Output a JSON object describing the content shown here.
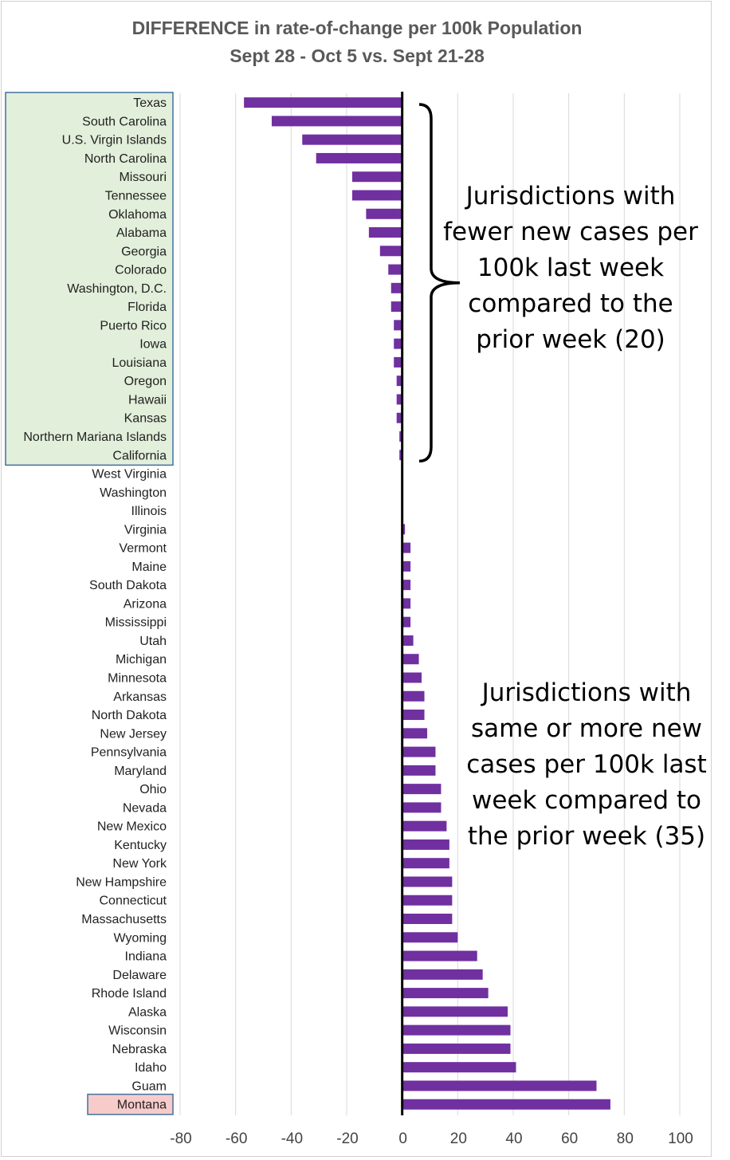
{
  "chart_data": {
    "type": "bar",
    "orientation": "horizontal",
    "title": "DIFFERENCE in rate-of-change per 100k Population",
    "subtitle": "Sept 28 - Oct 5 vs. Sept 21-28",
    "xlabel": "",
    "ylabel": "",
    "xlim": [
      -80,
      100
    ],
    "x_ticks": [
      -80,
      -60,
      -40,
      -20,
      0,
      20,
      40,
      60,
      80,
      100
    ],
    "grid": true,
    "bar_color": "#7030A0",
    "categories": [
      "Texas",
      "South Carolina",
      "U.S. Virgin Islands",
      "North Carolina",
      "Missouri",
      "Tennessee",
      "Oklahoma",
      "Alabama",
      "Georgia",
      "Colorado",
      "Washington, D.C.",
      "Florida",
      "Puerto Rico",
      "Iowa",
      "Louisiana",
      "Oregon",
      "Hawaii",
      "Kansas",
      "Northern Mariana Islands",
      "California",
      "West Virginia",
      "Washington",
      "Illinois",
      "Virginia",
      "Vermont",
      "Maine",
      "South Dakota",
      "Arizona",
      "Mississippi",
      "Utah",
      "Michigan",
      "Minnesota",
      "Arkansas",
      "North Dakota",
      "New Jersey",
      "Pennsylvania",
      "Maryland",
      "Ohio",
      "Nevada",
      "New Mexico",
      "Kentucky",
      "New York",
      "New Hampshire",
      "Connecticut",
      "Massachusetts",
      "Wyoming",
      "Indiana",
      "Delaware",
      "Rhode Island",
      "Alaska",
      "Wisconsin",
      "Nebraska",
      "Idaho",
      "Guam",
      "Montana"
    ],
    "values": [
      -57,
      -47,
      -36,
      -31,
      -18,
      -18,
      -13,
      -12,
      -8,
      -5,
      -4,
      -4,
      -3,
      -3,
      -3,
      -2,
      -2,
      -2,
      -1,
      -1,
      0,
      0,
      0,
      1,
      3,
      3,
      3,
      3,
      3,
      4,
      6,
      7,
      8,
      8,
      9,
      12,
      12,
      14,
      14,
      16,
      17,
      17,
      18,
      18,
      18,
      20,
      27,
      29,
      31,
      38,
      39,
      39,
      41,
      70,
      75
    ],
    "annotations": [
      {
        "lines": [
          "Jurisdictions with",
          "fewer new cases per",
          "100k last week",
          "compared to the",
          "prior week (20)"
        ]
      },
      {
        "lines": [
          "Jurisdictions with",
          "same or more new",
          "cases per 100k last",
          "week compared to",
          "the prior week (35)"
        ]
      }
    ],
    "highlights": [
      {
        "group": "decreasing",
        "from": "Texas",
        "to": "California",
        "fill": "#E2EFDA",
        "border": "#41719C"
      },
      {
        "group": "top",
        "from": "Montana",
        "to": "Montana",
        "fill": "#F8CBCB",
        "border": "#41719C"
      }
    ]
  }
}
